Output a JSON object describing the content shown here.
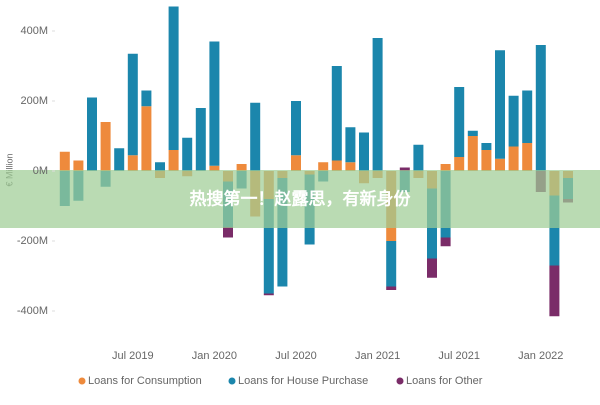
{
  "chart_data": {
    "type": "stacked_bar",
    "y_label": "€ Million",
    "annotation": "热搜第一！赵露思，有新身份",
    "categories": [
      null,
      null,
      null,
      null,
      null,
      "Jul 2019",
      null,
      null,
      null,
      null,
      null,
      "Jan 2020",
      null,
      null,
      null,
      null,
      null,
      "Jul 2020",
      null,
      null,
      null,
      null,
      null,
      "Jan 2021",
      null,
      null,
      null,
      null,
      null,
      "Jul 2021",
      null,
      null,
      null,
      null,
      null,
      "Jan 2022",
      null,
      null
    ],
    "series": [
      {
        "name": "Loans for Consumption",
        "color": "#ee8a3c",
        "values": [
          55,
          30,
          null,
          140,
          null,
          45,
          185,
          -20,
          60,
          -15,
          null,
          15,
          -30,
          20,
          -130,
          -80,
          -20,
          45,
          -10,
          25,
          30,
          25,
          -35,
          -20,
          -200,
          null,
          -20,
          -50,
          20,
          40,
          100,
          60,
          35,
          70,
          80,
          null,
          -70,
          -20
        ]
      },
      {
        "name": "Loans for House Purchase",
        "color": "#1b86ac",
        "values": [
          -100,
          -85,
          210,
          -45,
          65,
          290,
          45,
          25,
          410,
          95,
          180,
          355,
          -130,
          -50,
          195,
          -270,
          -310,
          155,
          -200,
          -30,
          270,
          100,
          110,
          380,
          -130,
          -60,
          75,
          -200,
          -190,
          200,
          15,
          20,
          310,
          145,
          150,
          360,
          -200,
          -60
        ]
      },
      {
        "name": "Loans for Other",
        "color": "#7a2c68",
        "values": [
          null,
          null,
          null,
          null,
          null,
          null,
          null,
          null,
          null,
          null,
          null,
          null,
          -30,
          null,
          null,
          -5,
          null,
          null,
          null,
          null,
          null,
          null,
          null,
          null,
          -10,
          10,
          null,
          -55,
          -25,
          null,
          null,
          null,
          null,
          null,
          null,
          -60,
          -145,
          -10
        ]
      }
    ],
    "ylim": [
      -450,
      480
    ],
    "yticks": [
      {
        "value": -400,
        "label": "-400M"
      },
      {
        "value": -200,
        "label": "-200M"
      },
      {
        "value": 0,
        "label": "0M"
      },
      {
        "value": 200,
        "label": "200M"
      },
      {
        "value": 400,
        "label": "400M"
      }
    ]
  }
}
